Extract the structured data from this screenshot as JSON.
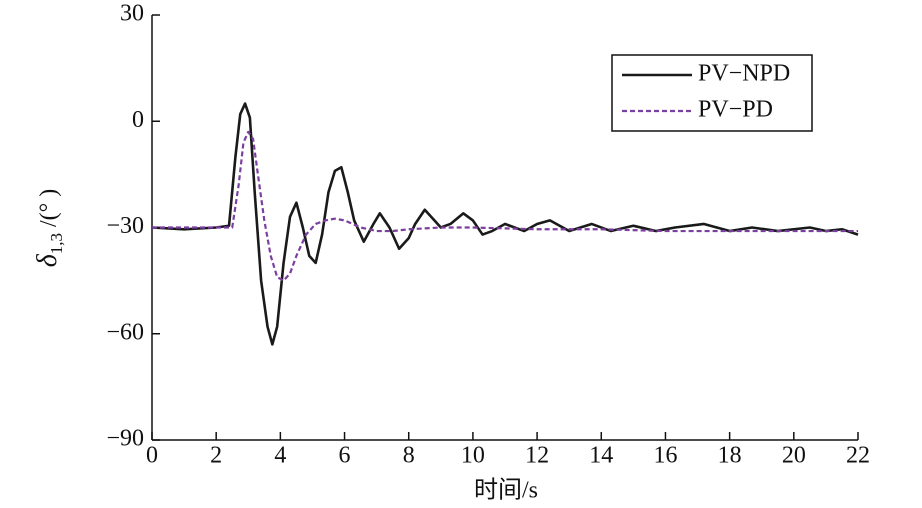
{
  "chart_data": {
    "type": "line",
    "xlabel": "时间/s",
    "ylabel": {
      "symbol": "δ",
      "subscript": "1,3",
      "unit": "/(°  )"
    },
    "xlim": [
      0,
      22
    ],
    "xticks": [
      0,
      2,
      4,
      6,
      8,
      10,
      12,
      14,
      16,
      18,
      20,
      22
    ],
    "ylim": [
      -90,
      30
    ],
    "yticks": [
      {
        "value": -90,
        "label": "−90"
      },
      {
        "value": -60,
        "label": "−60"
      },
      {
        "value": -30,
        "label": "−30"
      },
      0,
      30
    ],
    "legend": "upper right",
    "series": [
      {
        "name": "PV−NPD",
        "color": "#1a1a1a",
        "dash": false,
        "x": [
          0,
          1,
          2,
          2.4,
          2.6,
          2.75,
          2.9,
          3.05,
          3.2,
          3.4,
          3.6,
          3.75,
          3.9,
          4.1,
          4.3,
          4.5,
          4.7,
          4.9,
          5.1,
          5.3,
          5.5,
          5.7,
          5.9,
          6.1,
          6.3,
          6.6,
          6.9,
          7.1,
          7.4,
          7.7,
          8.0,
          8.2,
          8.5,
          8.8,
          9.0,
          9.3,
          9.7,
          10.0,
          10.3,
          10.6,
          11.0,
          11.6,
          12.0,
          12.4,
          13.0,
          13.7,
          14.3,
          15.0,
          15.7,
          16.3,
          17.2,
          18.0,
          18.7,
          19.5,
          20.5,
          21.0,
          21.5,
          22
        ],
        "values": [
          -30,
          -30.5,
          -30,
          -29.5,
          -10,
          2,
          5,
          1,
          -20,
          -45,
          -58,
          -63,
          -58,
          -40,
          -27,
          -23,
          -30,
          -38,
          -40,
          -32,
          -20,
          -14,
          -13,
          -20,
          -28,
          -34,
          -29,
          -26,
          -30,
          -36,
          -33,
          -29,
          -25,
          -28,
          -30,
          -29,
          -26,
          -28,
          -32,
          -31,
          -29,
          -31,
          -29,
          -28,
          -31,
          -29,
          -31,
          -29.5,
          -31,
          -30,
          -29,
          -31,
          -30,
          -31,
          -30,
          -31,
          -30.5,
          -32
        ]
      },
      {
        "name": "PV−PD",
        "color": "#7b3fa0",
        "dash": true,
        "x": [
          0,
          1,
          2,
          2.5,
          2.7,
          2.85,
          3.0,
          3.15,
          3.3,
          3.5,
          3.7,
          3.9,
          4.1,
          4.3,
          4.5,
          4.8,
          5.1,
          5.4,
          5.7,
          6.0,
          6.5,
          7.0,
          7.5,
          8.0,
          9,
          10,
          12,
          14,
          16,
          18,
          20,
          22
        ],
        "values": [
          -30,
          -30,
          -30,
          -30,
          -18,
          -6,
          -3,
          -5,
          -15,
          -28,
          -38,
          -44,
          -45,
          -43,
          -38,
          -32,
          -29,
          -28,
          -27.5,
          -28,
          -30,
          -31,
          -31,
          -30.5,
          -30,
          -30,
          -30.5,
          -30.5,
          -31,
          -31,
          -31,
          -31
        ]
      }
    ]
  }
}
